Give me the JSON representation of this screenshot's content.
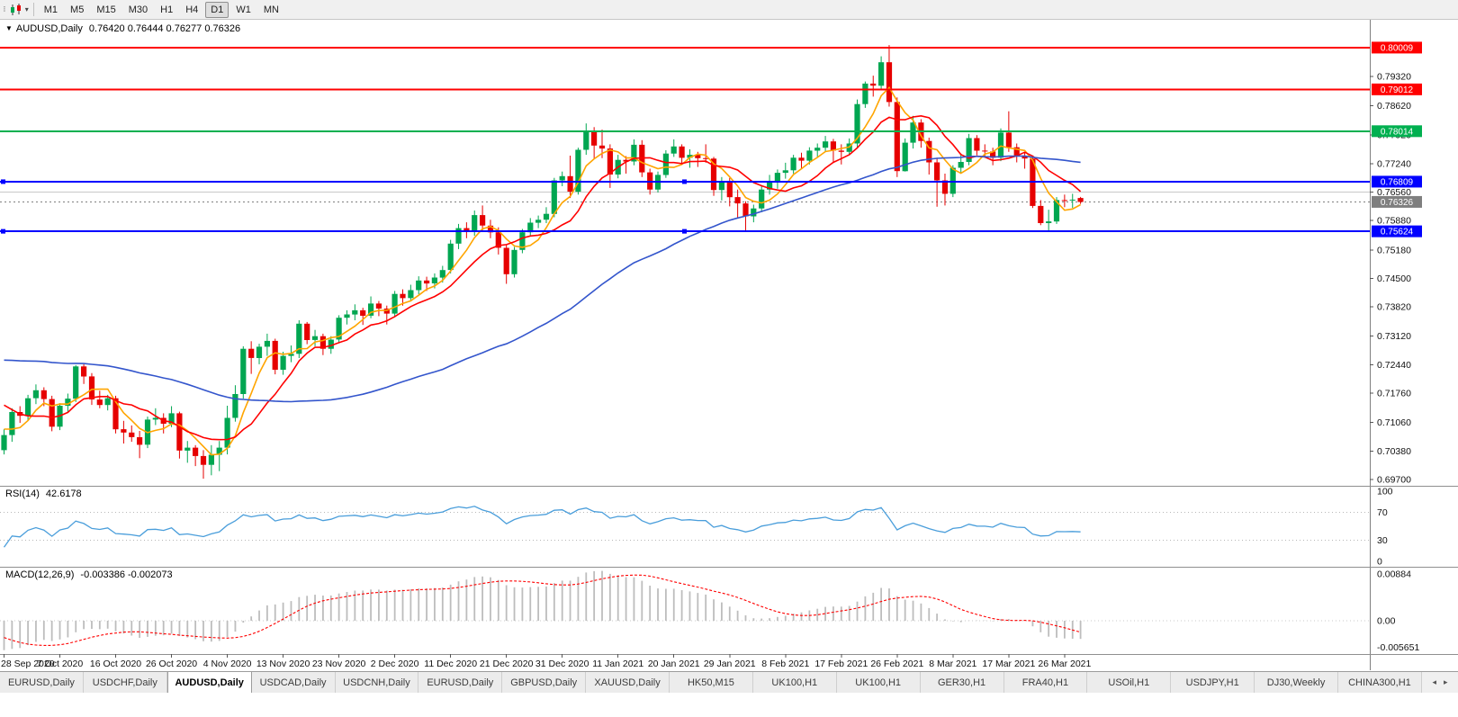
{
  "toolbar": {
    "timeframes": [
      "M1",
      "M5",
      "M15",
      "M30",
      "H1",
      "H4",
      "D1",
      "W1",
      "MN"
    ],
    "active": "D1",
    "dropdown_caret": "▾"
  },
  "chart": {
    "collapse_icon": "▼",
    "title_symbol": "AUDUSD,Daily",
    "ohlc_text": "0.76420 0.76444 0.76277 0.76326",
    "colors": {
      "up": "#00a651",
      "down": "#e60000",
      "hline_red": "#ff0000",
      "hline_green": "#00b050",
      "hline_blue": "#0000ff",
      "bid_line": "#808080",
      "silver_line": "#c9c9c9",
      "axis_border": "#808080"
    },
    "y_ticks": [
      "0.79320",
      "0.78620",
      "0.77920",
      "0.77240",
      "0.76560",
      "0.75880",
      "0.75180",
      "0.74500",
      "0.73820",
      "0.73120",
      "0.72440",
      "0.71760",
      "0.71060",
      "0.70380",
      "0.69700"
    ],
    "x_labels": [
      {
        "bar": 0,
        "text": "28 Sep 2020"
      },
      {
        "bar": 7,
        "text": "7 Oct 2020"
      },
      {
        "bar": 14,
        "text": "16 Oct 2020"
      },
      {
        "bar": 21,
        "text": "26 Oct 2020"
      },
      {
        "bar": 28,
        "text": "4 Nov 2020"
      },
      {
        "bar": 35,
        "text": "13 Nov 2020"
      },
      {
        "bar": 42,
        "text": "23 Nov 2020"
      },
      {
        "bar": 49,
        "text": "2 Dec 2020"
      },
      {
        "bar": 56,
        "text": "11 Dec 2020"
      },
      {
        "bar": 63,
        "text": "21 Dec 2020"
      },
      {
        "bar": 70,
        "text": "31 Dec 2020"
      },
      {
        "bar": 77,
        "text": "11 Jan 2021"
      },
      {
        "bar": 84,
        "text": "20 Jan 2021"
      },
      {
        "bar": 91,
        "text": "29 Jan 2021"
      },
      {
        "bar": 98,
        "text": "8 Feb 2021"
      },
      {
        "bar": 105,
        "text": "17 Feb 2021"
      },
      {
        "bar": 112,
        "text": "26 Feb 2021"
      },
      {
        "bar": 119,
        "text": "8 Mar 2021"
      },
      {
        "bar": 126,
        "text": "17 Mar 2021"
      },
      {
        "bar": 133,
        "text": "26 Mar 2021"
      }
    ],
    "hlines": [
      {
        "price": 0.80009,
        "label": "0.80009",
        "color": "#ff0000",
        "width": 2,
        "badge": true,
        "handles": false
      },
      {
        "price": 0.79012,
        "label": "0.79012",
        "color": "#ff0000",
        "width": 2,
        "badge": true,
        "handles": false
      },
      {
        "price": 0.78014,
        "label": "0.78014",
        "color": "#00b050",
        "width": 2,
        "badge": true,
        "handles": false
      },
      {
        "price": 0.76809,
        "label": "0.76809",
        "color": "#0000ff",
        "width": 2,
        "badge": true,
        "handles": true
      },
      {
        "price": 0.75624,
        "label": "0.75624",
        "color": "#0000ff",
        "width": 2,
        "badge": true,
        "handles": true
      },
      {
        "price": 0.7656,
        "label": "",
        "color": "#c9c9c9",
        "width": 1,
        "badge": false,
        "handles": false
      }
    ],
    "bid": {
      "price": 0.76326,
      "label": "0.76326",
      "color": "#7f7f7f"
    },
    "moving_averages": [
      {
        "period": 5,
        "color": "#ffa500",
        "name": "ma-fast-orange"
      },
      {
        "period": 10,
        "color": "#ff0000",
        "name": "ma-mid-red"
      },
      {
        "period": 50,
        "color": "#3355cc",
        "name": "ma-slow-blue"
      }
    ],
    "pre_closes": [
      0.715,
      0.7162,
      0.7178,
      0.7185,
      0.719,
      0.7205,
      0.7215,
      0.7208,
      0.7222,
      0.723,
      0.7238,
      0.7252,
      0.724,
      0.7256,
      0.7268,
      0.728,
      0.7288,
      0.7302,
      0.7295,
      0.731,
      0.7322,
      0.733,
      0.7318,
      0.7328,
      0.734,
      0.7352,
      0.7346,
      0.736,
      0.737,
      0.7365,
      0.7352,
      0.734,
      0.733,
      0.7315,
      0.73,
      0.731,
      0.729,
      0.7275,
      0.7282,
      0.7268,
      0.7255,
      0.724,
      0.7225,
      0.721,
      0.719,
      0.716,
      0.713,
      0.7105,
      0.708,
      0.706
    ],
    "candles": [
      [
        0.704,
        0.709,
        0.703,
        0.7076
      ],
      [
        0.7076,
        0.714,
        0.706,
        0.7131
      ],
      [
        0.7131,
        0.7145,
        0.7105,
        0.7122
      ],
      [
        0.7122,
        0.7172,
        0.711,
        0.7164
      ],
      [
        0.7164,
        0.7197,
        0.715,
        0.7183
      ],
      [
        0.7183,
        0.719,
        0.7145,
        0.7162
      ],
      [
        0.7162,
        0.717,
        0.7085,
        0.7096
      ],
      [
        0.7096,
        0.7152,
        0.7088,
        0.7146
      ],
      [
        0.7146,
        0.7175,
        0.713,
        0.7163
      ],
      [
        0.7163,
        0.7243,
        0.7155,
        0.724
      ],
      [
        0.724,
        0.7245,
        0.7198,
        0.7216
      ],
      [
        0.7216,
        0.7224,
        0.7148,
        0.7161
      ],
      [
        0.7161,
        0.7182,
        0.714,
        0.7148
      ],
      [
        0.7148,
        0.7172,
        0.7135,
        0.7164
      ],
      [
        0.7164,
        0.717,
        0.708,
        0.709
      ],
      [
        0.709,
        0.711,
        0.7056,
        0.7082
      ],
      [
        0.7082,
        0.7099,
        0.706,
        0.7071
      ],
      [
        0.7071,
        0.7086,
        0.7021,
        0.7053
      ],
      [
        0.7053,
        0.712,
        0.7045,
        0.7113
      ],
      [
        0.7113,
        0.714,
        0.71,
        0.7117
      ],
      [
        0.7117,
        0.7128,
        0.708,
        0.7103
      ],
      [
        0.7103,
        0.7145,
        0.7095,
        0.7128
      ],
      [
        0.7128,
        0.7132,
        0.702,
        0.7039
      ],
      [
        0.7039,
        0.7062,
        0.701,
        0.7046
      ],
      [
        0.7046,
        0.7052,
        0.7002,
        0.7026
      ],
      [
        0.7026,
        0.704,
        0.6972,
        0.7005
      ],
      [
        0.7005,
        0.7052,
        0.698,
        0.7029
      ],
      [
        0.7029,
        0.7062,
        0.699,
        0.7046
      ],
      [
        0.7046,
        0.7146,
        0.703,
        0.7117
      ],
      [
        0.7117,
        0.7195,
        0.7108,
        0.7174
      ],
      [
        0.7174,
        0.7288,
        0.7163,
        0.7282
      ],
      [
        0.7282,
        0.73,
        0.7222,
        0.726
      ],
      [
        0.726,
        0.7294,
        0.7245,
        0.7287
      ],
      [
        0.7287,
        0.7318,
        0.7265,
        0.7301
      ],
      [
        0.7301,
        0.7306,
        0.7221,
        0.7232
      ],
      [
        0.7232,
        0.7275,
        0.722,
        0.7265
      ],
      [
        0.7265,
        0.729,
        0.725,
        0.727
      ],
      [
        0.727,
        0.735,
        0.726,
        0.7342
      ],
      [
        0.7342,
        0.7346,
        0.7293,
        0.7303
      ],
      [
        0.7303,
        0.7327,
        0.7288,
        0.7312
      ],
      [
        0.7312,
        0.7318,
        0.7267,
        0.7282
      ],
      [
        0.7282,
        0.7312,
        0.727,
        0.7304
      ],
      [
        0.7304,
        0.7362,
        0.7296,
        0.7356
      ],
      [
        0.7356,
        0.7374,
        0.734,
        0.7364
      ],
      [
        0.7364,
        0.7388,
        0.735,
        0.7374
      ],
      [
        0.7374,
        0.738,
        0.7339,
        0.7361
      ],
      [
        0.7361,
        0.7407,
        0.7355,
        0.739
      ],
      [
        0.739,
        0.7396,
        0.736,
        0.7378
      ],
      [
        0.7378,
        0.7385,
        0.734,
        0.7366
      ],
      [
        0.7366,
        0.742,
        0.7357,
        0.7413
      ],
      [
        0.7413,
        0.7424,
        0.7385,
        0.7403
      ],
      [
        0.7403,
        0.7435,
        0.7395,
        0.7422
      ],
      [
        0.7422,
        0.7455,
        0.7412,
        0.7445
      ],
      [
        0.7445,
        0.7454,
        0.742,
        0.7438
      ],
      [
        0.7438,
        0.7462,
        0.7426,
        0.7452
      ],
      [
        0.7452,
        0.748,
        0.744,
        0.747
      ],
      [
        0.747,
        0.7542,
        0.7462,
        0.7533
      ],
      [
        0.7533,
        0.758,
        0.752,
        0.757
      ],
      [
        0.757,
        0.7584,
        0.7546,
        0.7562
      ],
      [
        0.7562,
        0.7612,
        0.7552,
        0.7601
      ],
      [
        0.7601,
        0.7624,
        0.7562,
        0.7576
      ],
      [
        0.7576,
        0.759,
        0.7546,
        0.756
      ],
      [
        0.756,
        0.7572,
        0.7507,
        0.7523
      ],
      [
        0.7523,
        0.7531,
        0.7437,
        0.746
      ],
      [
        0.746,
        0.7525,
        0.7452,
        0.7518
      ],
      [
        0.7518,
        0.7568,
        0.751,
        0.756
      ],
      [
        0.756,
        0.7594,
        0.7551,
        0.7583
      ],
      [
        0.7583,
        0.76,
        0.757,
        0.759
      ],
      [
        0.759,
        0.762,
        0.7582,
        0.7604
      ],
      [
        0.7604,
        0.769,
        0.7596,
        0.7684
      ],
      [
        0.7684,
        0.7705,
        0.767,
        0.7694
      ],
      [
        0.7694,
        0.7743,
        0.7642,
        0.7657
      ],
      [
        0.7657,
        0.7762,
        0.765,
        0.7757
      ],
      [
        0.7757,
        0.782,
        0.7745,
        0.7801
      ],
      [
        0.7801,
        0.7811,
        0.7735,
        0.7767
      ],
      [
        0.7767,
        0.7805,
        0.7737,
        0.776
      ],
      [
        0.776,
        0.777,
        0.7666,
        0.7698
      ],
      [
        0.7698,
        0.7745,
        0.7689,
        0.7733
      ],
      [
        0.7733,
        0.7742,
        0.77,
        0.7729
      ],
      [
        0.7729,
        0.7782,
        0.772,
        0.7769
      ],
      [
        0.7769,
        0.778,
        0.7692,
        0.7703
      ],
      [
        0.7703,
        0.7712,
        0.765,
        0.7662
      ],
      [
        0.7662,
        0.7705,
        0.7655,
        0.7697
      ],
      [
        0.7697,
        0.7756,
        0.769,
        0.7748
      ],
      [
        0.7748,
        0.7782,
        0.774,
        0.7765
      ],
      [
        0.7765,
        0.777,
        0.7725,
        0.7738
      ],
      [
        0.7738,
        0.7758,
        0.7714,
        0.7745
      ],
      [
        0.7745,
        0.7752,
        0.7716,
        0.7737
      ],
      [
        0.7737,
        0.777,
        0.7726,
        0.7736
      ],
      [
        0.7736,
        0.774,
        0.7647,
        0.7661
      ],
      [
        0.7661,
        0.7692,
        0.7636,
        0.7683
      ],
      [
        0.7683,
        0.769,
        0.7622,
        0.7644
      ],
      [
        0.7644,
        0.7662,
        0.7594,
        0.7629
      ],
      [
        0.7629,
        0.7634,
        0.7563,
        0.7598
      ],
      [
        0.7598,
        0.7626,
        0.7584,
        0.7617
      ],
      [
        0.7617,
        0.767,
        0.7608,
        0.7662
      ],
      [
        0.7662,
        0.7697,
        0.765,
        0.7679
      ],
      [
        0.7679,
        0.771,
        0.7664,
        0.7702
      ],
      [
        0.7702,
        0.7726,
        0.7688,
        0.7708
      ],
      [
        0.7708,
        0.7745,
        0.77,
        0.7738
      ],
      [
        0.7738,
        0.775,
        0.7712,
        0.7731
      ],
      [
        0.7731,
        0.7763,
        0.7722,
        0.7755
      ],
      [
        0.7755,
        0.7772,
        0.774,
        0.7762
      ],
      [
        0.7762,
        0.779,
        0.7752,
        0.7777
      ],
      [
        0.7777,
        0.7783,
        0.7726,
        0.7755
      ],
      [
        0.7755,
        0.777,
        0.7722,
        0.7752
      ],
      [
        0.7752,
        0.7784,
        0.7744,
        0.7772
      ],
      [
        0.7772,
        0.7877,
        0.7762,
        0.7866
      ],
      [
        0.7866,
        0.792,
        0.7857,
        0.7915
      ],
      [
        0.7915,
        0.7934,
        0.7884,
        0.791
      ],
      [
        0.791,
        0.798,
        0.79,
        0.7966
      ],
      [
        0.7966,
        0.8007,
        0.786,
        0.7871
      ],
      [
        0.7871,
        0.7882,
        0.7692,
        0.7706
      ],
      [
        0.7706,
        0.7784,
        0.7705,
        0.7774
      ],
      [
        0.7774,
        0.7838,
        0.776,
        0.7822
      ],
      [
        0.7822,
        0.783,
        0.7762,
        0.7778
      ],
      [
        0.7778,
        0.7786,
        0.7698,
        0.7727
      ],
      [
        0.7727,
        0.7738,
        0.7621,
        0.7684
      ],
      [
        0.7684,
        0.77,
        0.7624,
        0.7652
      ],
      [
        0.7652,
        0.772,
        0.7644,
        0.7714
      ],
      [
        0.7714,
        0.7748,
        0.7702,
        0.7728
      ],
      [
        0.7728,
        0.7795,
        0.772,
        0.7785
      ],
      [
        0.7785,
        0.7792,
        0.7744,
        0.7755
      ],
      [
        0.7755,
        0.777,
        0.7738,
        0.7753
      ],
      [
        0.7753,
        0.7762,
        0.772,
        0.7738
      ],
      [
        0.7738,
        0.7808,
        0.773,
        0.7798
      ],
      [
        0.7798,
        0.7849,
        0.7752,
        0.7763
      ],
      [
        0.7763,
        0.7772,
        0.7727,
        0.7741
      ],
      [
        0.7741,
        0.775,
        0.7712,
        0.7736
      ],
      [
        0.7736,
        0.7742,
        0.7618,
        0.7623
      ],
      [
        0.7623,
        0.7637,
        0.7577,
        0.7582
      ],
      [
        0.7582,
        0.7614,
        0.7563,
        0.7586
      ],
      [
        0.7586,
        0.7644,
        0.758,
        0.7637
      ],
      [
        0.7637,
        0.765,
        0.762,
        0.7636
      ],
      [
        0.7636,
        0.7652,
        0.7618,
        0.7638
      ],
      [
        0.7642,
        0.76444,
        0.76277,
        0.76326
      ]
    ]
  },
  "rsi": {
    "name": "RSI(14)",
    "value": "42.6178",
    "period": 14,
    "color": "#4a9edb",
    "levels": [
      {
        "value": 100,
        "label": "100"
      },
      {
        "value": 70,
        "label": "70"
      },
      {
        "value": 30,
        "label": "30"
      },
      {
        "value": 0,
        "label": "0"
      }
    ]
  },
  "macd": {
    "name": "MACD(12,26,9)",
    "values": "-0.003386 -0.002073",
    "fast": 12,
    "slow": 26,
    "signal": 9,
    "hist_color": "#bdbdbd",
    "signal_color": "#ff0000",
    "scale": [
      {
        "value": 0.00884,
        "label": "0.00884"
      },
      {
        "value": 0,
        "label": "0.00"
      },
      {
        "value": -0.005651,
        "label": "-0.005651"
      }
    ]
  },
  "tabs": {
    "items": [
      "EURUSD,Daily",
      "USDCHF,Daily",
      "AUDUSD,Daily",
      "USDCAD,Daily",
      "USDCNH,Daily",
      "EURUSD,Daily",
      "GBPUSD,Daily",
      "XAUUSD,Daily",
      "HK50,M15",
      "UK100,H1",
      "UK100,H1",
      "GER30,H1",
      "FRA40,H1",
      "USOil,H1",
      "USDJPY,H1",
      "DJ30,Weekly",
      "CHINA300,H1"
    ],
    "active_index": 2,
    "left_arrow": "◂",
    "right_arrow": "▸"
  }
}
